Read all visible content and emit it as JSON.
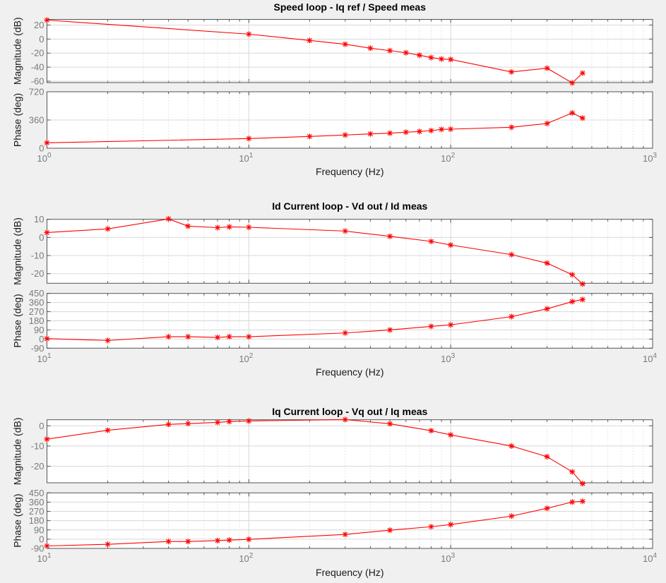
{
  "chart_data": [
    {
      "type": "line",
      "title": "Speed loop - Iq ref / Speed meas",
      "xlabel": "Frequency  (Hz)",
      "xscale": "log",
      "xlim": [
        1,
        1000
      ],
      "xtick_base": "10",
      "xtick_exponents": [
        "0",
        "1",
        "2",
        "3"
      ],
      "grid": true,
      "x": [
        1,
        10,
        20,
        30,
        40,
        50,
        60,
        70,
        80,
        90,
        100,
        200,
        300,
        400,
        450
      ],
      "magnitude": {
        "ylabel": "Magnitude (dB)",
        "ylim": [
          -62,
          28
        ],
        "yticks": [
          20,
          0,
          -20,
          -40,
          -60
        ],
        "ytick_labels": [
          "20",
          "0",
          "-20",
          "-40",
          "-60"
        ],
        "values": [
          27,
          7,
          -2,
          -7.4,
          -13,
          -16.5,
          -19.5,
          -23,
          -26.4,
          -28.4,
          -29,
          -46.8,
          -41.5,
          -62.5,
          -48.5
        ]
      },
      "phase": {
        "ylabel": "Phase (deg)",
        "ylim": [
          0,
          720
        ],
        "yticks": [
          720,
          360,
          0
        ],
        "ytick_labels": [
          "720",
          "360",
          "0"
        ],
        "values": [
          69,
          123,
          150,
          168,
          183,
          192,
          204,
          213,
          225,
          240,
          243,
          267,
          315,
          450,
          384
        ]
      },
      "series_color": "#ff0000",
      "marker": "asterisk"
    },
    {
      "type": "line",
      "title": "Id Current loop - Vd out / Id meas",
      "xlabel": "Frequency  (Hz)",
      "xscale": "log",
      "xlim": [
        10,
        10000
      ],
      "xtick_base": "10",
      "xtick_exponents": [
        "1",
        "2",
        "3",
        "4"
      ],
      "grid": true,
      "x": [
        10,
        20,
        40,
        50,
        70,
        80,
        100,
        300,
        500,
        800,
        1000,
        2000,
        3000,
        4000,
        4500
      ],
      "magnitude": {
        "ylabel": "Magnitude (dB)",
        "ylim": [
          -25.3,
          10
        ],
        "yticks": [
          10,
          0,
          -10,
          -20
        ],
        "ytick_labels": [
          "10",
          "0",
          "-10",
          "-20"
        ],
        "values": [
          2.7,
          4.7,
          10.2,
          6.2,
          5.4,
          5.8,
          5.6,
          3.5,
          0.6,
          -2.2,
          -4.2,
          -9.5,
          -14.2,
          -20.6,
          -25.7
        ]
      },
      "phase": {
        "ylabel": "Phase (deg)",
        "ylim": [
          -90,
          450
        ],
        "yticks": [
          450,
          360,
          270,
          180,
          90,
          0,
          -90
        ],
        "ytick_labels": [
          "450",
          "360",
          "270",
          "180",
          "90",
          "0",
          "-90"
        ],
        "values": [
          4,
          -14,
          23,
          23,
          16,
          23,
          23,
          60,
          90,
          125,
          140,
          221,
          298,
          369,
          390
        ]
      },
      "series_color": "#ff0000",
      "marker": "asterisk"
    },
    {
      "type": "line",
      "title": "Iq Current loop - Vq out / Iq meas",
      "xlabel": "Frequency  (Hz)",
      "xscale": "log",
      "xlim": [
        10,
        10000
      ],
      "xtick_base": "10",
      "xtick_exponents": [
        "1",
        "2",
        "3",
        "4"
      ],
      "grid": true,
      "x": [
        10,
        20,
        40,
        50,
        70,
        80,
        100,
        300,
        500,
        800,
        1000,
        2000,
        3000,
        4000,
        4500
      ],
      "magnitude": {
        "ylabel": "Magnitude (dB)",
        "ylim": [
          -28.2,
          3
        ],
        "yticks": [
          0,
          -10,
          -20
        ],
        "ytick_labels": [
          "0",
          "-10",
          "-20"
        ],
        "values": [
          -6.6,
          -2.2,
          0.7,
          1.1,
          1.7,
          2.1,
          2.4,
          3.1,
          1.0,
          -2.4,
          -4.5,
          -10.0,
          -15.3,
          -22.8,
          -28.6
        ]
      },
      "phase": {
        "ylabel": "Phase (deg)",
        "ylim": [
          -90,
          450
        ],
        "yticks": [
          450,
          360,
          270,
          180,
          90,
          0,
          -90
        ],
        "ytick_labels": [
          "450",
          "360",
          "270",
          "180",
          "90",
          "0",
          "-90"
        ],
        "values": [
          -66,
          -50,
          -23,
          -23,
          -14,
          -9,
          -2,
          46,
          87,
          121,
          142,
          224,
          300,
          361,
          368
        ]
      },
      "series_color": "#ff0000",
      "marker": "asterisk"
    }
  ]
}
